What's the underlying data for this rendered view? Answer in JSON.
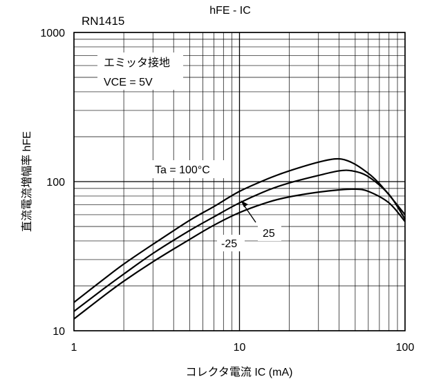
{
  "chart_data": {
    "type": "line",
    "title": "hFE - IC",
    "part_number": "RN1415",
    "xlabel": "コレクタ電流  IC (mA)",
    "ylabel": "直流電流増幅率  hFE",
    "xscale": "log",
    "yscale": "log",
    "xlim": [
      1,
      100
    ],
    "ylim": [
      10,
      1000
    ],
    "grid": true,
    "x_ticks": [
      {
        "value": 1,
        "label": "1"
      },
      {
        "value": 10,
        "label": "10"
      },
      {
        "value": 100,
        "label": "100"
      }
    ],
    "y_ticks": [
      {
        "value": 10,
        "label": "10"
      },
      {
        "value": 100,
        "label": "100"
      },
      {
        "value": 1000,
        "label": "1000"
      }
    ],
    "condition_lines": [
      "エミッタ接地",
      "VCE = 5V"
    ],
    "series": [
      {
        "name": "Ta = 100°C",
        "x": [
          1,
          1.5,
          2,
          3,
          5,
          7,
          10,
          15,
          20,
          30,
          38,
          45,
          55,
          70,
          100
        ],
        "y": [
          15.5,
          22,
          28,
          38,
          55,
          68,
          86,
          105,
          118,
          135,
          142,
          138,
          122,
          97,
          60
        ]
      },
      {
        "name": "25",
        "x": [
          1,
          1.5,
          2,
          3,
          5,
          7,
          10,
          15,
          20,
          30,
          40,
          48,
          60,
          80,
          100
        ],
        "y": [
          13.5,
          19,
          24,
          33,
          47,
          58,
          72,
          88,
          98,
          110,
          118,
          118,
          108,
          82,
          56
        ]
      },
      {
        "name": "-25",
        "x": [
          1,
          1.5,
          2,
          3,
          5,
          7,
          10,
          15,
          20,
          30,
          40,
          50,
          60,
          80,
          100
        ],
        "y": [
          12,
          17,
          21.5,
          29,
          41,
          51,
          62,
          73,
          79,
          85,
          88,
          89,
          86,
          72,
          54
        ]
      }
    ],
    "annotations": [
      {
        "text": "Ta = 100°C",
        "series": 0
      },
      {
        "text": "25",
        "series": 1
      },
      {
        "text": "-25",
        "series": 2
      }
    ]
  }
}
